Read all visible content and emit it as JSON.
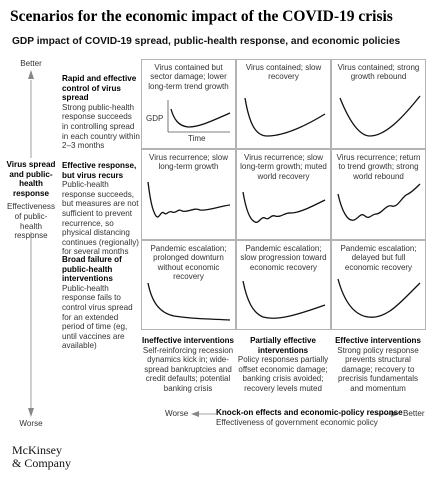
{
  "title": "Scenarios for the economic impact of the COVID-19 crisis",
  "subtitle": "GDP impact of COVID-19 spread, public-health response, and economic policies",
  "y_axis": {
    "better": "Better",
    "worse": "Worse",
    "title": "Virus spread and public-health response",
    "subtitle": "Effectiveness of public-health response"
  },
  "x_axis": {
    "better": "Better",
    "worse": "Worse",
    "title": "Knock-on effects and economic-policy response",
    "subtitle": "Effectiveness of government economic policy"
  },
  "rows": [
    {
      "heading": "Rapid and effective control of virus spread",
      "body": "Strong public-health response succeeds in controlling spread in each country within 2–3 months"
    },
    {
      "heading": "Effective response, but virus recurs",
      "body": "Public-health response succeeds, but measures are not sufficient to prevent recurrence, so physical distancing continues (regionally) for several months"
    },
    {
      "heading": "Broad failure of public-health interventions",
      "body": "Public-health response fails to control virus spread for an extended period of time (eg, until vaccines are available)"
    }
  ],
  "columns": [
    {
      "heading": "Ineffective interventions",
      "body": "Self-reinforcing recession dynamics kick in; wide-spread bankruptcies and credit defaults; potential banking crisis"
    },
    {
      "heading": "Partially effective interventions",
      "body": "Policy responses partially offset economic damage; banking crisis avoided; recovery levels muted"
    },
    {
      "heading": "Effective interventions",
      "body": "Strong policy response prevents structural damage; recovery to precrisis fundamentals and momentum"
    }
  ],
  "cells": [
    [
      "Virus contained but sector damage; lower long-term trend growth",
      "Virus contained; slow recovery",
      "Virus contained; strong growth rebound"
    ],
    [
      "Virus recurrence; slow long-term growth",
      "Virus recurrence; slow long-term growth; muted world recovery",
      "Virus recurrence; return to trend growth; strong world rebound"
    ],
    [
      "Pandemic escalation; prolonged downturn without economic recovery",
      "Pandemic escalation; slow progression toward economic recovery",
      "Pandemic escalation; delayed but full economic recovery"
    ]
  ],
  "gdp_label": "GDP",
  "time_label": "Time",
  "logo": {
    "line1": "McKinsey",
    "line2": "& Company"
  },
  "colors": {
    "line": "#111111",
    "cell_border": "#b3b3b3",
    "axis": "#888888"
  }
}
